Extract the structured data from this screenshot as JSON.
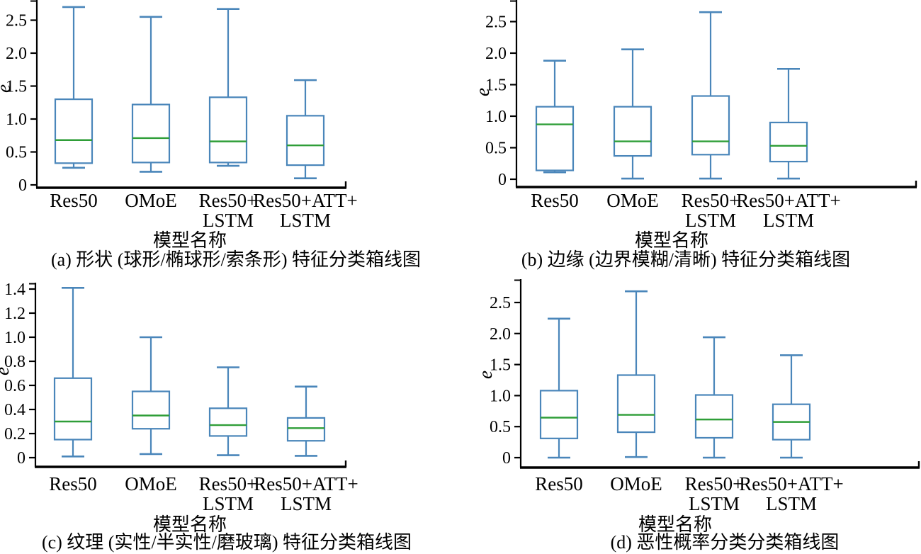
{
  "colors": {
    "box_edge": "#4a86ba",
    "median_line": "#2f9e38",
    "axis": "#000000",
    "background": "#ffffff"
  },
  "chart_data": [
    {
      "type": "boxplot",
      "panel_label": "(a)",
      "caption": "(a) 形状 (球形/椭球形/索条形) 特征分类箱线图",
      "xlabel": "模型名称",
      "ylabel": "e",
      "categories": [
        "Res50",
        "OMoE",
        "Res50+LSTM",
        "Res50+ATT+LSTM"
      ],
      "category_lines": [
        [
          "Res50"
        ],
        [
          "OMoE"
        ],
        [
          "Res50+",
          "LSTM"
        ],
        [
          "Res50+ATT+",
          "LSTM"
        ]
      ],
      "ylim": [
        0,
        2.8
      ],
      "yticks": [
        0,
        0.5,
        1.0,
        1.5,
        2.0,
        2.5
      ],
      "grid": false,
      "stats": [
        {
          "name": "Res50",
          "whisker_low": 0.26,
          "q1": 0.33,
          "median": 0.68,
          "q3": 1.3,
          "whisker_high": 2.7
        },
        {
          "name": "OMoE",
          "whisker_low": 0.2,
          "q1": 0.34,
          "median": 0.71,
          "q3": 1.22,
          "whisker_high": 2.55
        },
        {
          "name": "Res50+LSTM",
          "whisker_low": 0.29,
          "q1": 0.34,
          "median": 0.66,
          "q3": 1.33,
          "whisker_high": 2.67
        },
        {
          "name": "Res50+ATT+LSTM",
          "whisker_low": 0.1,
          "q1": 0.3,
          "median": 0.6,
          "q3": 1.05,
          "whisker_high": 1.59
        }
      ]
    },
    {
      "type": "boxplot",
      "panel_label": "(b)",
      "caption": "(b) 边缘 (边界模糊/清晰) 特征分类箱线图",
      "xlabel": "模型名称",
      "ylabel": "e",
      "categories": [
        "Res50",
        "OMoE",
        "Res50+LSTM",
        "Res50+ATT+LSTM"
      ],
      "category_lines": [
        [
          "Res50"
        ],
        [
          "OMoE"
        ],
        [
          "Res50+",
          "LSTM"
        ],
        [
          "Res50+ATT+",
          "LSTM"
        ]
      ],
      "ylim": [
        0,
        2.8
      ],
      "yticks": [
        0,
        0.5,
        1.0,
        1.5,
        2.0,
        2.5
      ],
      "grid": false,
      "stats": [
        {
          "name": "Res50",
          "whisker_low": 0.11,
          "q1": 0.14,
          "median": 0.87,
          "q3": 1.15,
          "whisker_high": 1.88
        },
        {
          "name": "OMoE",
          "whisker_low": 0.01,
          "q1": 0.37,
          "median": 0.6,
          "q3": 1.15,
          "whisker_high": 2.06
        },
        {
          "name": "Res50+LSTM",
          "whisker_low": 0.01,
          "q1": 0.39,
          "median": 0.6,
          "q3": 1.32,
          "whisker_high": 2.65
        },
        {
          "name": "Res50+ATT+LSTM",
          "whisker_low": 0.01,
          "q1": 0.28,
          "median": 0.53,
          "q3": 0.9,
          "whisker_high": 1.75
        }
      ]
    },
    {
      "type": "boxplot",
      "panel_label": "(c)",
      "caption": "(c) 纹理 (实性/半实性/磨玻璃) 特征分类箱线图",
      "xlabel": "模型名称",
      "ylabel": "e",
      "categories": [
        "Res50",
        "OMoE",
        "Res50+LSTM",
        "Res50+ATT+LSTM"
      ],
      "category_lines": [
        [
          "Res50"
        ],
        [
          "OMoE"
        ],
        [
          "Res50+",
          "LSTM"
        ],
        [
          "Res50+ATT+",
          "LSTM"
        ]
      ],
      "ylim": [
        0,
        1.45
      ],
      "yticks": [
        0,
        0.2,
        0.4,
        0.6,
        0.8,
        1.0,
        1.2,
        1.4
      ],
      "grid": false,
      "stats": [
        {
          "name": "Res50",
          "whisker_low": 0.01,
          "q1": 0.15,
          "median": 0.3,
          "q3": 0.66,
          "whisker_high": 1.41
        },
        {
          "name": "OMoE",
          "whisker_low": 0.03,
          "q1": 0.24,
          "median": 0.35,
          "q3": 0.55,
          "whisker_high": 1.0
        },
        {
          "name": "Res50+LSTM",
          "whisker_low": 0.02,
          "q1": 0.18,
          "median": 0.27,
          "q3": 0.41,
          "whisker_high": 0.75
        },
        {
          "name": "Res50+ATT+LSTM",
          "whisker_low": 0.015,
          "q1": 0.14,
          "median": 0.245,
          "q3": 0.33,
          "whisker_high": 0.59
        }
      ]
    },
    {
      "type": "boxplot",
      "panel_label": "(d)",
      "caption": "(d) 恶性概率分类分类箱线图",
      "xlabel": "模型名称",
      "ylabel": "e",
      "categories": [
        "Res50",
        "OMoE",
        "Res50+LSTM",
        "Res50+ATT+LSTM"
      ],
      "category_lines": [
        [
          "Res50"
        ],
        [
          "OMoE"
        ],
        [
          "Res50+",
          "LSTM"
        ],
        [
          "Res50+ATT+",
          "LSTM"
        ]
      ],
      "ylim": [
        0,
        2.85
      ],
      "yticks": [
        0,
        0.5,
        1.0,
        1.5,
        2.0,
        2.5
      ],
      "grid": false,
      "stats": [
        {
          "name": "Res50",
          "whisker_low": 0.0,
          "q1": 0.31,
          "median": 0.645,
          "q3": 1.08,
          "whisker_high": 2.24
        },
        {
          "name": "OMoE",
          "whisker_low": 0.01,
          "q1": 0.41,
          "median": 0.69,
          "q3": 1.33,
          "whisker_high": 2.68
        },
        {
          "name": "Res50+LSTM",
          "whisker_low": 0.0,
          "q1": 0.32,
          "median": 0.615,
          "q3": 1.01,
          "whisker_high": 1.94
        },
        {
          "name": "Res50+ATT+LSTM",
          "whisker_low": 0.0,
          "q1": 0.29,
          "median": 0.575,
          "q3": 0.86,
          "whisker_high": 1.65
        }
      ]
    }
  ]
}
